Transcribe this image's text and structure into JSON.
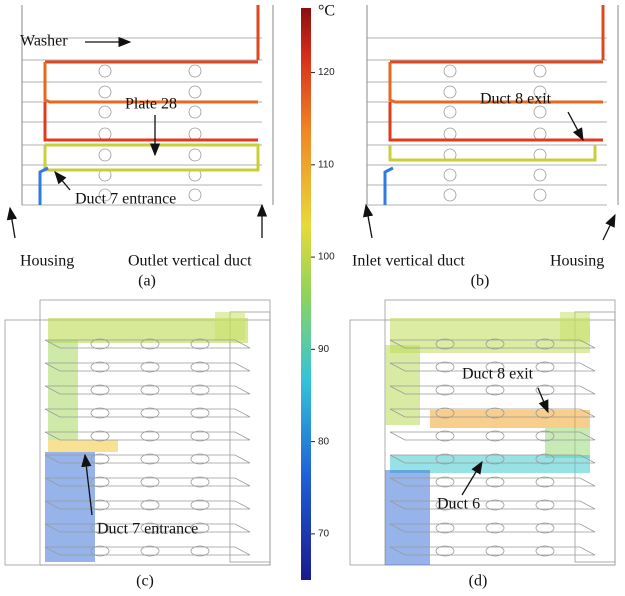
{
  "colorbar": {
    "unit": "°C",
    "range": [
      65,
      127
    ],
    "ticks": [
      70,
      80,
      90,
      100,
      110,
      120
    ]
  },
  "panels": [
    {
      "label": "(a)",
      "annotations": [
        "Washer",
        "Plate 28",
        "Duct 7 entrance",
        "Housing",
        "Outlet vertical duct"
      ]
    },
    {
      "label": "(b)",
      "annotations": [
        "Duct 8 exit",
        "Inlet vertical duct",
        "Housing"
      ]
    },
    {
      "label": "(c)",
      "annotations": [
        "Duct 7 entrance"
      ]
    },
    {
      "label": "(d)",
      "annotations": [
        "Duct 8 exit",
        "Duct 6"
      ]
    }
  ]
}
